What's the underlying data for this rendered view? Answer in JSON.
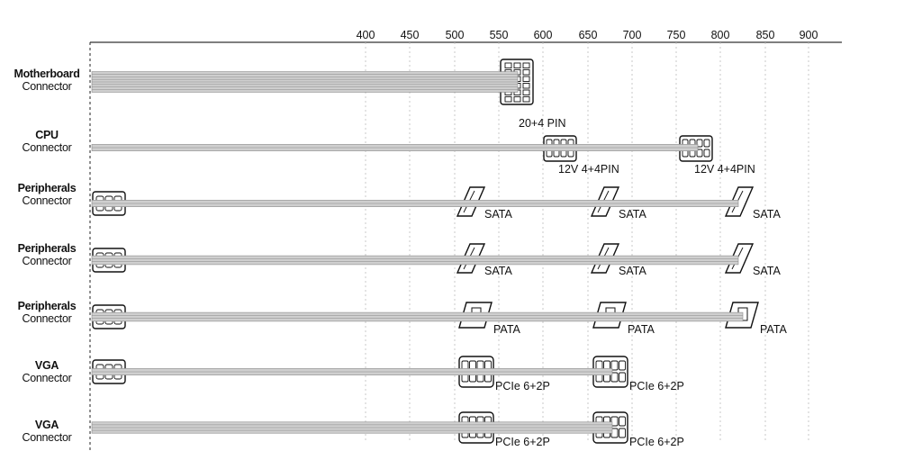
{
  "scale": {
    "ticks": [
      "400",
      "450",
      "500",
      "550",
      "600",
      "650",
      "700",
      "750",
      "800",
      "850",
      "900"
    ]
  },
  "rows": [
    {
      "title": "Motherboard",
      "subtitle": "Connector",
      "connectors": [
        {
          "type": "atx",
          "label": "20+4 PIN"
        }
      ]
    },
    {
      "title": "CPU",
      "subtitle": "Connector",
      "connectors": [
        {
          "type": "cpu",
          "label": "12V 4+4PIN"
        },
        {
          "type": "cpu",
          "label": "12V 4+4PIN"
        }
      ]
    },
    {
      "title": "Peripherals",
      "subtitle": "Connector",
      "connectors": [
        {
          "type": "sata",
          "label": "SATA"
        },
        {
          "type": "sata",
          "label": "SATA"
        },
        {
          "type": "sata",
          "label": "SATA"
        }
      ]
    },
    {
      "title": "Peripherals",
      "subtitle": "Connector",
      "connectors": [
        {
          "type": "sata",
          "label": "SATA"
        },
        {
          "type": "sata",
          "label": "SATA"
        },
        {
          "type": "sata",
          "label": "SATA"
        }
      ]
    },
    {
      "title": "Peripherals",
      "subtitle": "Connector",
      "connectors": [
        {
          "type": "pata",
          "label": "PATA"
        },
        {
          "type": "pata",
          "label": "PATA"
        },
        {
          "type": "pata",
          "label": "PATA"
        }
      ]
    },
    {
      "title": "VGA",
      "subtitle": "Connector",
      "connectors": [
        {
          "type": "pcie",
          "label": "PCIe 6+2P"
        },
        {
          "type": "pcie",
          "label": "PCIe 6+2P"
        }
      ]
    },
    {
      "title": "VGA",
      "subtitle": "Connector",
      "connectors": [
        {
          "type": "pcie",
          "label": "PCIe 6+2P"
        },
        {
          "type": "pcie",
          "label": "PCIe 6+2P"
        }
      ]
    }
  ],
  "colors": {
    "line": "#333333",
    "cable": "#cfcfcf",
    "cable_edge": "#8a8a8a",
    "grid": "#bdbdbd"
  }
}
